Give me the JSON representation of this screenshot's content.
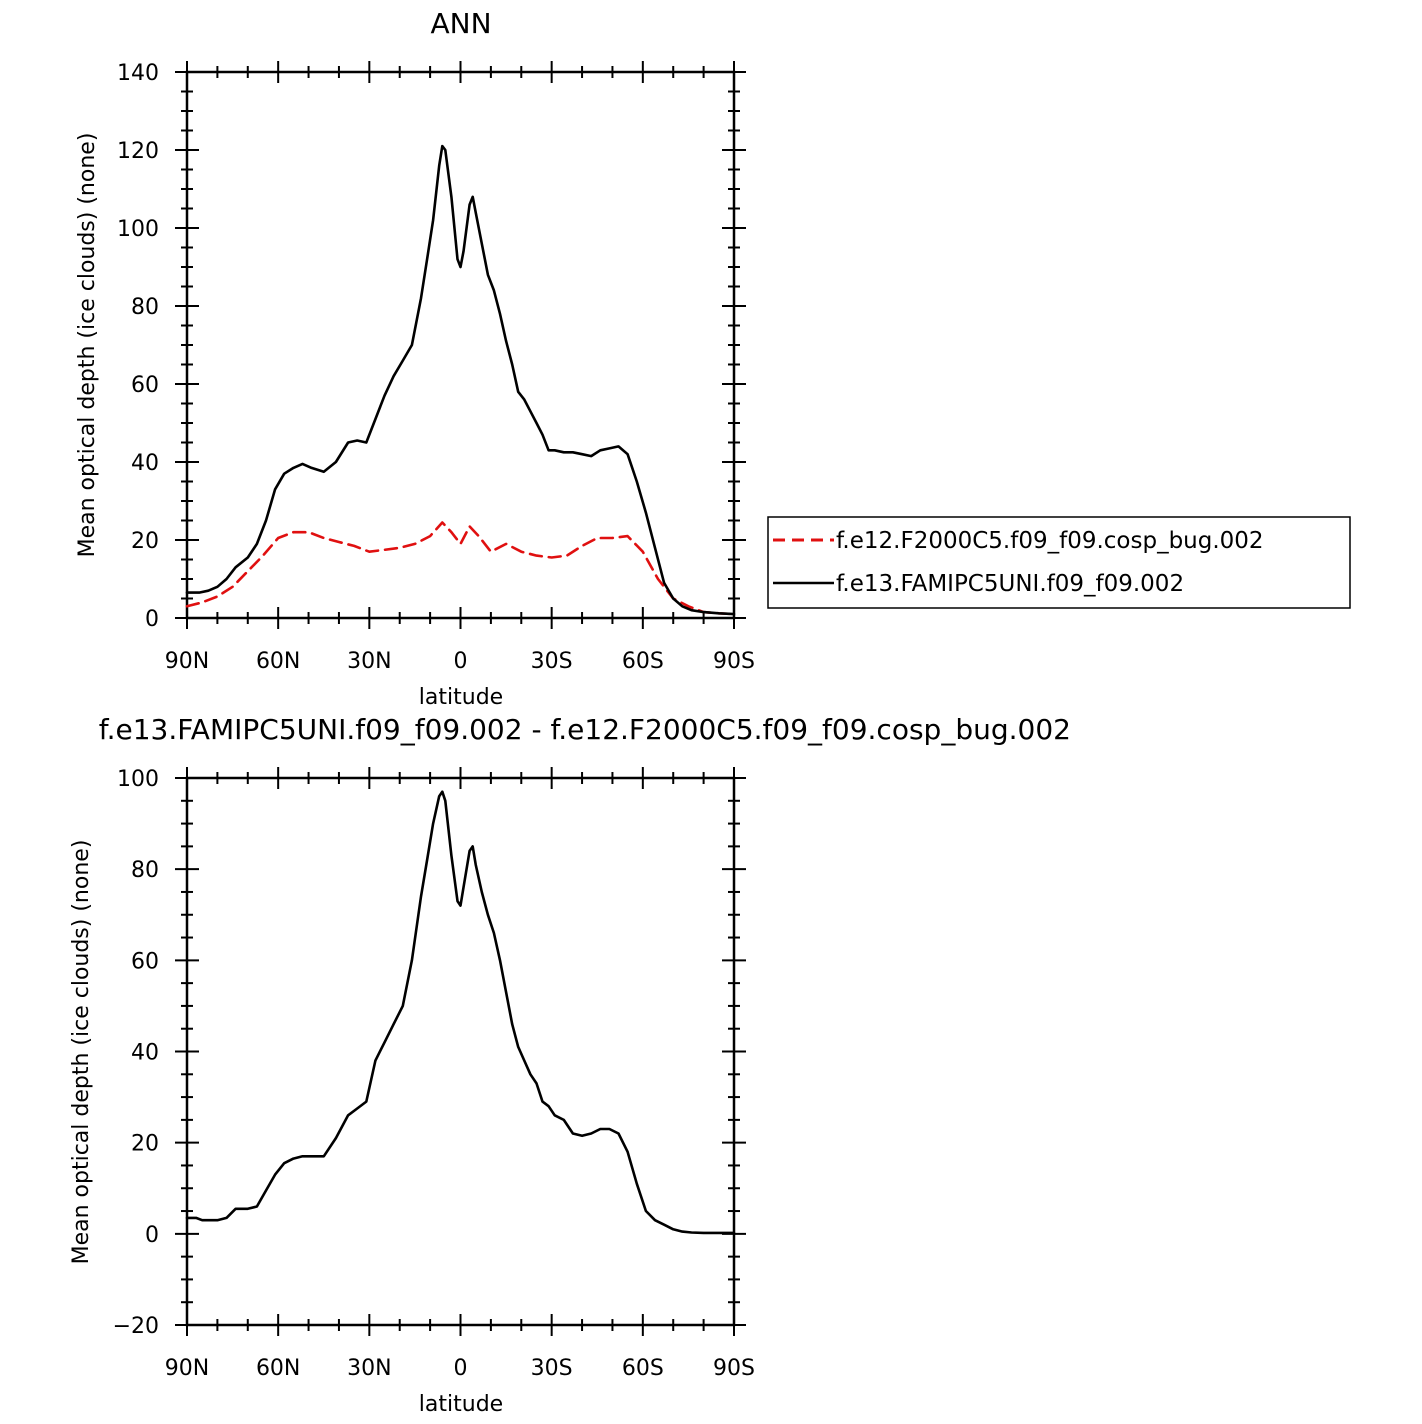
{
  "chart_data": [
    {
      "type": "line",
      "title": "ANN",
      "xlabel": "latitude",
      "ylabel": "Mean optical depth (ice clouds) (none)",
      "xlim": [
        90,
        -90
      ],
      "ylim": [
        0,
        140
      ],
      "xticks": [
        90,
        60,
        30,
        0,
        -30,
        -60,
        -90
      ],
      "xtick_labels": [
        "90N",
        "60N",
        "30N",
        "0",
        "30S",
        "60S",
        "90S"
      ],
      "yticks": [
        0,
        20,
        40,
        60,
        80,
        100,
        120,
        140
      ],
      "ytick_labels": [
        "0",
        "20",
        "40",
        "60",
        "80",
        "100",
        "120",
        "140"
      ],
      "grid": false,
      "legend_position": "right",
      "series": [
        {
          "name": "f.e12.F2000C5.f09_f09.cosp_bug.002",
          "color": "#e01010",
          "style": "dashed",
          "x": [
            90,
            85,
            80,
            75,
            70,
            65,
            60,
            55,
            50,
            45,
            40,
            35,
            30,
            25,
            20,
            15,
            10,
            6,
            3,
            0,
            -3,
            -6,
            -10,
            -15,
            -20,
            -25,
            -30,
            -35,
            -40,
            -45,
            -50,
            -55,
            -60,
            -65,
            -70,
            -75,
            -80,
            -85,
            -90
          ],
          "y": [
            3,
            4,
            5.5,
            8,
            12,
            16,
            20.5,
            22,
            22,
            20.5,
            19.5,
            18.5,
            17,
            17.5,
            18,
            19,
            21,
            24.5,
            22,
            19,
            23.5,
            21,
            17,
            19,
            17,
            16,
            15.5,
            16,
            18.5,
            20.5,
            20.5,
            21,
            17,
            10,
            5,
            3,
            1.5,
            1.2,
            1
          ]
        },
        {
          "name": "f.e13.FAMIPC5UNI.f09_f09.002",
          "color": "#000000",
          "style": "solid",
          "x": [
            90,
            86,
            83,
            80,
            77,
            74,
            70,
            67,
            64,
            61,
            58,
            55,
            52,
            49,
            45,
            41,
            37,
            34,
            31,
            28,
            25,
            22,
            19,
            16,
            13,
            11,
            9,
            7,
            6,
            5,
            3,
            1,
            0,
            -1,
            -3,
            -4,
            -5,
            -7,
            -9,
            -11,
            -13,
            -15,
            -17,
            -19,
            -21,
            -23,
            -25,
            -27,
            -29,
            -31,
            -34,
            -37,
            -40,
            -43,
            -46,
            -49,
            -52,
            -55,
            -58,
            -61,
            -64,
            -67,
            -70,
            -73,
            -76,
            -80,
            -85,
            -90
          ],
          "y": [
            6.5,
            6.5,
            7,
            8,
            10,
            13,
            15.5,
            19,
            25,
            33,
            37,
            38.5,
            39.5,
            38.5,
            37.5,
            40,
            45,
            45.5,
            45,
            51,
            57,
            62,
            66,
            70,
            82,
            92,
            102,
            116,
            121,
            120,
            108,
            92,
            90,
            94,
            106,
            108,
            104,
            96,
            88,
            84,
            78,
            71,
            65,
            58,
            56,
            53,
            50,
            47,
            43,
            43,
            42.5,
            42.5,
            42,
            41.5,
            43,
            43.5,
            44,
            42,
            35,
            27,
            18,
            9,
            5,
            3,
            2,
            1.5,
            1.2,
            1
          ]
        }
      ]
    },
    {
      "type": "line",
      "title": "f.e13.FAMIPC5UNI.f09_f09.002 - f.e12.F2000C5.f09_f09.cosp_bug.002",
      "xlabel": "latitude",
      "ylabel": "Mean optical depth (ice clouds) (none)",
      "xlim": [
        90,
        -90
      ],
      "ylim": [
        -20,
        100
      ],
      "xticks": [
        90,
        60,
        30,
        0,
        -30,
        -60,
        -90
      ],
      "xtick_labels": [
        "90N",
        "60N",
        "30N",
        "0",
        "30S",
        "60S",
        "90S"
      ],
      "yticks": [
        -20,
        0,
        20,
        40,
        60,
        80,
        100
      ],
      "ytick_labels": [
        "−20",
        "0",
        "20",
        "40",
        "60",
        "80",
        "100"
      ],
      "grid": false,
      "series": [
        {
          "color": "#000000",
          "style": "solid",
          "x": [
            90,
            87,
            85,
            83,
            80,
            77,
            74,
            70,
            67,
            64,
            61,
            58,
            55,
            52,
            49,
            45,
            41,
            37,
            34,
            31,
            28,
            25,
            22,
            19,
            16,
            13,
            11,
            9,
            7,
            6,
            5,
            3,
            1,
            0,
            -1,
            -3,
            -4,
            -5,
            -7,
            -9,
            -11,
            -13,
            -15,
            -17,
            -19,
            -21,
            -23,
            -25,
            -27,
            -29,
            -31,
            -34,
            -37,
            -40,
            -43,
            -46,
            -49,
            -52,
            -55,
            -58,
            -61,
            -64,
            -67,
            -70,
            -73,
            -76,
            -80,
            -85,
            -90
          ],
          "y": [
            3.5,
            3.5,
            3,
            3,
            3,
            3.5,
            5.5,
            5.5,
            6,
            9.5,
            13,
            15.5,
            16.5,
            17,
            17,
            17,
            21,
            26,
            27.5,
            29,
            38,
            42,
            46,
            50,
            60,
            74,
            82,
            90,
            96,
            97,
            95,
            83,
            73,
            72,
            76,
            84,
            85,
            81,
            75,
            70,
            66,
            60,
            53,
            46,
            41,
            38,
            35,
            33,
            29,
            28,
            26,
            25,
            22,
            21.5,
            22,
            23,
            23,
            22,
            18,
            11,
            5,
            3,
            2,
            1,
            0.5,
            0.3,
            0.2,
            0.2,
            0.2
          ]
        }
      ]
    }
  ]
}
